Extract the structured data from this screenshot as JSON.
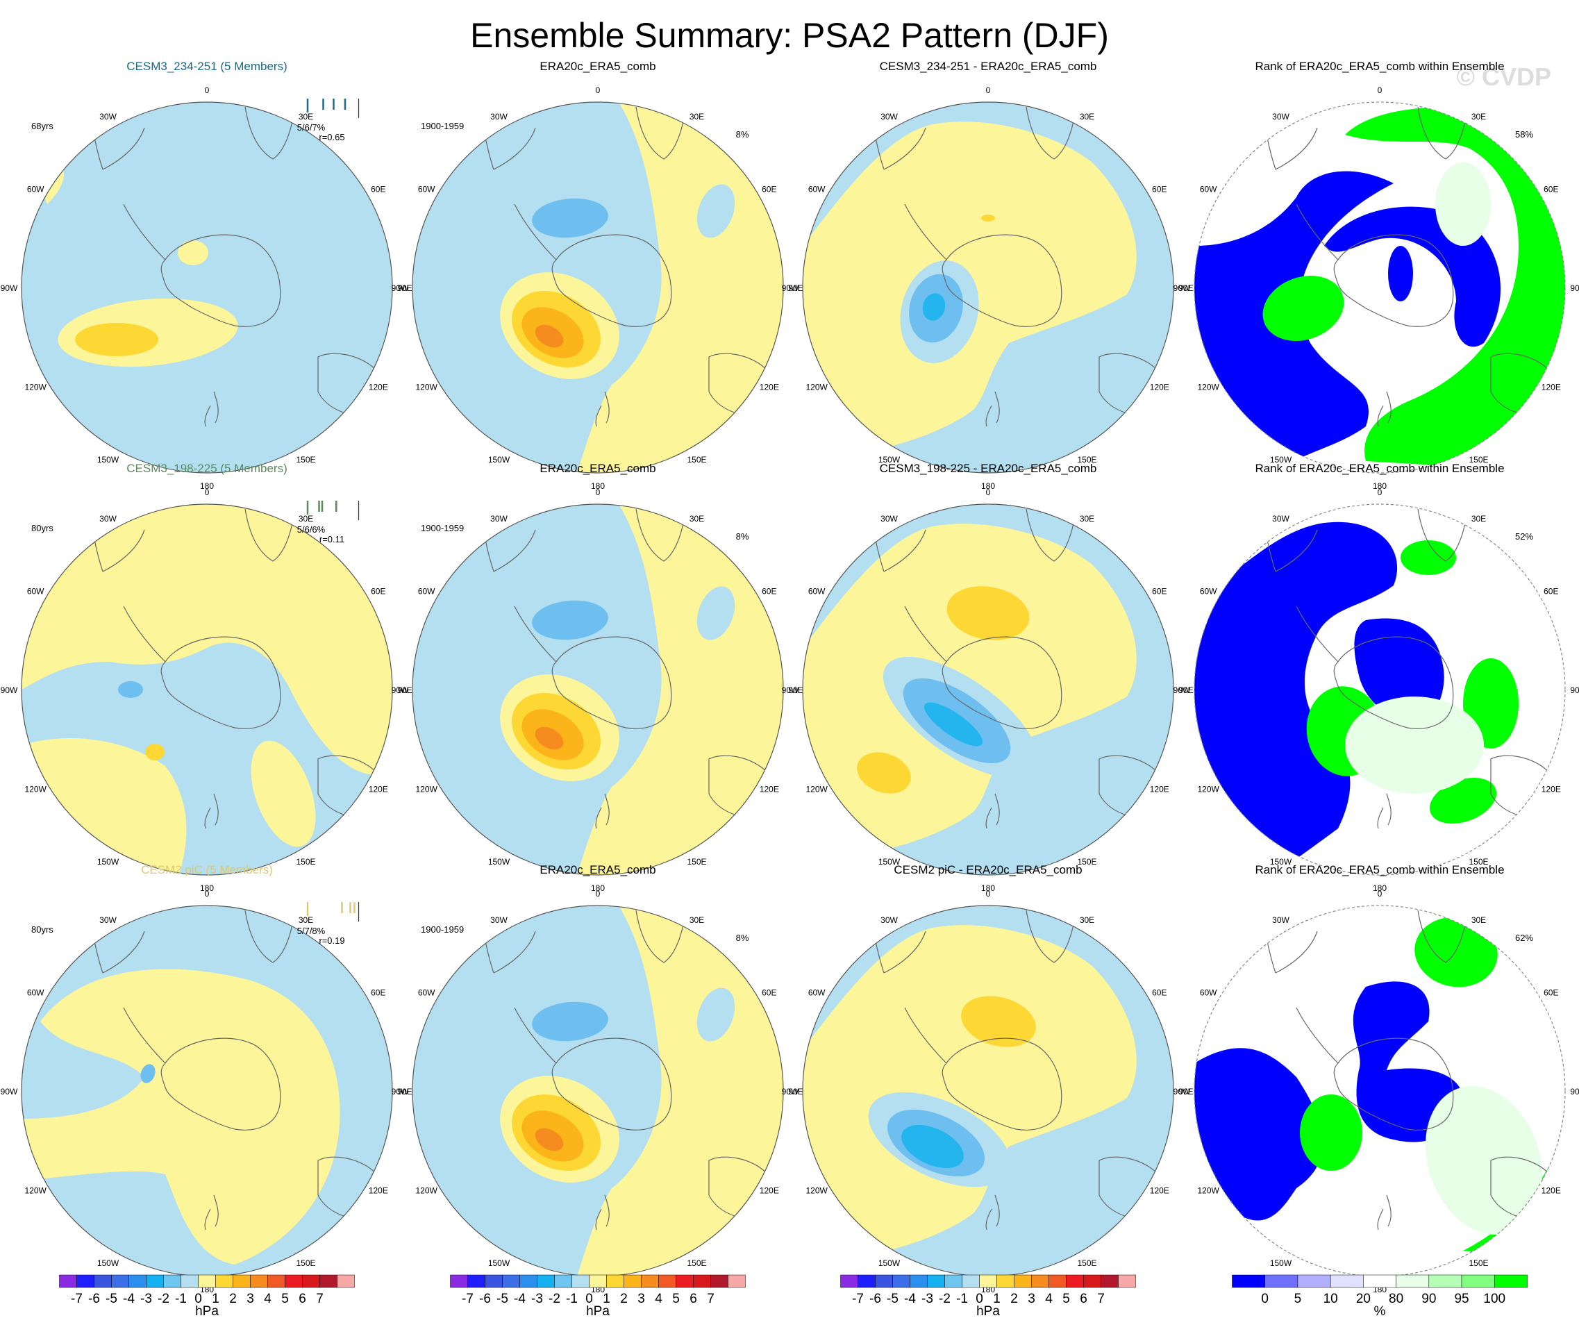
{
  "title": "Ensemble Summary: PSA2 Pattern (DJF)",
  "watermark": "© CVDP",
  "colors": {
    "ocean": "#b3dff0",
    "pos1": "#fdf59a",
    "pos2": "#fdd835",
    "pos3": "#fbb41a",
    "pos4": "#f68b1f",
    "neg1": "#b3dff0",
    "neg2": "#6ebff0",
    "neg3": "#24b5ee",
    "rank_blue": "#0000ff",
    "rank_green": "#00ff00",
    "rank_lightgreen": "#e6ffe6"
  },
  "rows": [
    {
      "panels": [
        {
          "kind": "model",
          "title": "CESM3_234-251 (5 Members)",
          "title_color": "#1a6a8a",
          "years": "68yrs",
          "stat": "5/6/7%",
          "corr": "r=0.65",
          "ticks": [
            0.0,
            0.3,
            0.5,
            0.72,
            0.98
          ]
        },
        {
          "kind": "obs",
          "title": "ERA20c_ERA5_comb",
          "years": "1900-1959",
          "pct": "8%"
        },
        {
          "kind": "diff",
          "title": "CESM3_234-251 - ERA20c_ERA5_comb"
        },
        {
          "kind": "rank",
          "title": "Rank of ERA20c_ERA5_comb within Ensemble",
          "pct": "58%"
        }
      ]
    },
    {
      "panels": [
        {
          "kind": "model",
          "title": "CESM3_198-225 (5 Members)",
          "title_color": "#5a8a5a",
          "years": "80yrs",
          "stat": "5/6/6%",
          "corr": "r=0.11",
          "ticks": [
            0.0,
            0.22,
            0.28,
            0.55,
            0.98
          ]
        },
        {
          "kind": "obs",
          "title": "ERA20c_ERA5_comb",
          "years": "1900-1959",
          "pct": "8%"
        },
        {
          "kind": "diff",
          "title": "CESM3_198-225 - ERA20c_ERA5_comb"
        },
        {
          "kind": "rank",
          "title": "Rank of ERA20c_ERA5_comb within Ensemble",
          "pct": "52%"
        }
      ]
    },
    {
      "panels": [
        {
          "kind": "model",
          "title": "CESM2 piC (5 Members)",
          "title_color": "#e0c870",
          "years": "80yrs",
          "stat": "5/7/8%",
          "corr": "r=0.19",
          "ticks": [
            0.0,
            0.66,
            0.82,
            0.9,
            0.98
          ]
        },
        {
          "kind": "obs",
          "title": "ERA20c_ERA5_comb",
          "years": "1900-1959",
          "pct": "8%"
        },
        {
          "kind": "diff",
          "title": "CESM2 piC - ERA20c_ERA5_comb"
        },
        {
          "kind": "rank",
          "title": "Rank of ERA20c_ERA5_comb within Ensemble",
          "pct": "62%"
        }
      ]
    }
  ],
  "lon_labels": [
    "0",
    "30E",
    "60E",
    "90E",
    "120E",
    "150E",
    "180",
    "150W",
    "120W",
    "90W",
    "60W",
    "30W"
  ],
  "colorbars": {
    "hpa": {
      "unit": "hPa",
      "labels": [
        "-7",
        "-6",
        "-5",
        "-4",
        "-3",
        "-2",
        "-1",
        "0",
        "1",
        "2",
        "3",
        "4",
        "5",
        "6",
        "7"
      ],
      "colors": [
        "#8a2be2",
        "#1e1eff",
        "#3a56e0",
        "#3c6ee8",
        "#2b8ff0",
        "#14b0f0",
        "#6ec6f0",
        "#b3dff0",
        "#fdf59a",
        "#fdd835",
        "#fbb41a",
        "#f68b1f",
        "#f15a24",
        "#ed1c24",
        "#d7191c",
        "#b2182b",
        "#f7a9a8"
      ]
    },
    "rank": {
      "unit": "%",
      "labels": [
        "0",
        "5",
        "10",
        "20",
        "80",
        "90",
        "95",
        "100"
      ],
      "colors": [
        "#0000ff",
        "#7070ff",
        "#b0b0ff",
        "#e0e0ff",
        "#ffffff",
        "#e6ffe6",
        "#b6ffb6",
        "#80ff80",
        "#00ff00"
      ]
    }
  },
  "chart_data": {
    "type": "heatmap",
    "description_fields": {
      "variable": "PSA2 Pattern (DJF)",
      "units": "hPa",
      "rank_units": "%"
    },
    "hpa_levels": [
      -7,
      -6,
      -5,
      -4,
      -3,
      -2,
      -1,
      0,
      1,
      2,
      3,
      4,
      5,
      6,
      7
    ],
    "rank_levels": [
      0,
      5,
      10,
      20,
      80,
      90,
      95,
      100
    ],
    "pattern_extremes_hPa": {
      "CESM3_234-251": {
        "max": 2.5,
        "min": -0.5
      },
      "ERA20c_ERA5_comb": {
        "max": 4.5,
        "min": -2.5
      },
      "CESM3_234-251 - ERA20c_ERA5_comb": {
        "max": 1.5,
        "min": -3.5
      },
      "CESM3_198-225": {
        "max": 1.5,
        "min": -2.5
      },
      "CESM3_198-225 - ERA20c_ERA5_comb": {
        "max": 2.5,
        "min": -3.5
      },
      "CESM2 piC": {
        "max": 0.5,
        "min": -2.5
      },
      "CESM2 piC - ERA20c_ERA5_comb": {
        "max": 2.5,
        "min": -3.5
      }
    }
  }
}
